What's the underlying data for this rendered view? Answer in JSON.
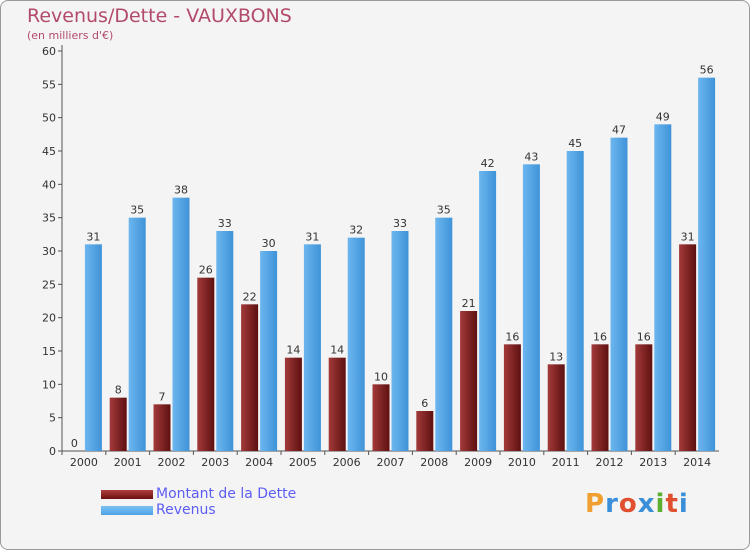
{
  "header": {
    "title": "Revenus/Dette - VAUXBONS",
    "subtitle": "(en milliers d'€)"
  },
  "colors": {
    "dette": "#7a1f1f",
    "revenus": "#4ea3e6",
    "axis_text": "#333333",
    "title": "#b24a6a",
    "legend_text": "#5d5df5"
  },
  "legend": [
    {
      "label": "Montant de la Dette",
      "color": "#6b0f0f"
    },
    {
      "label": "Revenus",
      "color": "#4ea3e6"
    }
  ],
  "logo": {
    "letters": [
      "P",
      "r",
      "o",
      "x",
      "i",
      "t",
      "i"
    ],
    "colors": [
      "#f0a030",
      "#3a8fd8",
      "#e05030",
      "#3a8fd8",
      "#5cb030",
      "#e05030",
      "#3a8fd8"
    ]
  },
  "chart_data": {
    "type": "bar",
    "categories": [
      "2000",
      "2001",
      "2002",
      "2003",
      "2004",
      "2005",
      "2006",
      "2007",
      "2008",
      "2009",
      "2010",
      "2011",
      "2012",
      "2013",
      "2014"
    ],
    "series": [
      {
        "name": "Montant de la Dette",
        "values": [
          0,
          8,
          7,
          26,
          22,
          14,
          14,
          10,
          6,
          21,
          16,
          13,
          16,
          16,
          31
        ]
      },
      {
        "name": "Revenus",
        "values": [
          31,
          35,
          38,
          33,
          30,
          31,
          32,
          33,
          35,
          42,
          43,
          45,
          47,
          49,
          56
        ]
      }
    ],
    "ylim": [
      0,
      60
    ],
    "yticks": [
      0,
      5,
      10,
      15,
      20,
      25,
      30,
      35,
      40,
      45,
      50,
      55,
      60
    ],
    "grid": false,
    "legend_position": "bottom-left"
  }
}
